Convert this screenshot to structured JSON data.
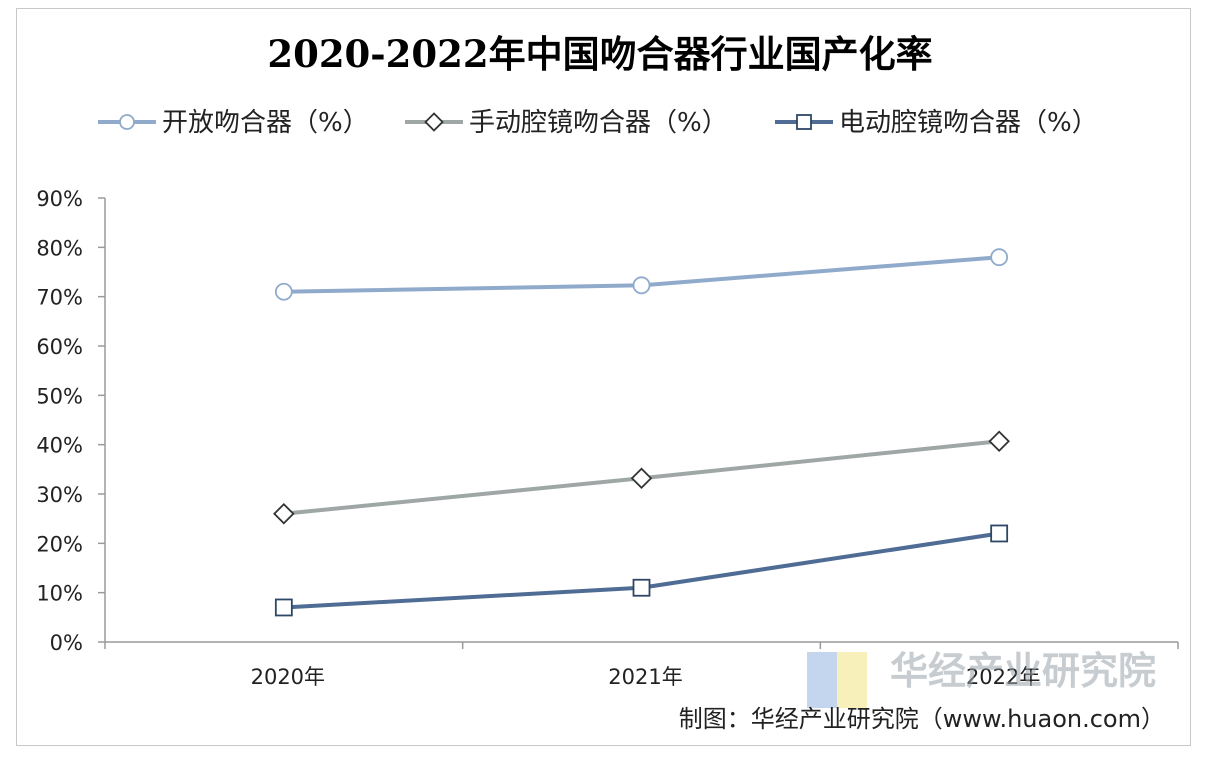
{
  "chart_data": {
    "type": "line",
    "title": "2020-2022年中国吻合器行业国产化率",
    "categories": [
      "2020年",
      "2021年",
      "2022年"
    ],
    "y_ticks": [
      "0%",
      "10%",
      "20%",
      "30%",
      "40%",
      "50%",
      "60%",
      "70%",
      "80%",
      "90%"
    ],
    "ylim": [
      0,
      90
    ],
    "grid": false,
    "legend_position": "top",
    "series": [
      {
        "name": "开放吻合器（%）",
        "values": [
          71,
          72.3,
          78
        ],
        "marker": "circle",
        "color": "#8faacb"
      },
      {
        "name": "手动腔镜吻合器（%）",
        "values": [
          26,
          33.2,
          40.7
        ],
        "marker": "diamond",
        "color": "#9ea7a6"
      },
      {
        "name": "电动腔镜吻合器（%）",
        "values": [
          7,
          11,
          22
        ],
        "marker": "square",
        "color": "#4f6c94"
      }
    ]
  },
  "watermark": {
    "text": "华经产业研究院"
  },
  "source": "制图：华经产业研究院（www.huaon.com）"
}
